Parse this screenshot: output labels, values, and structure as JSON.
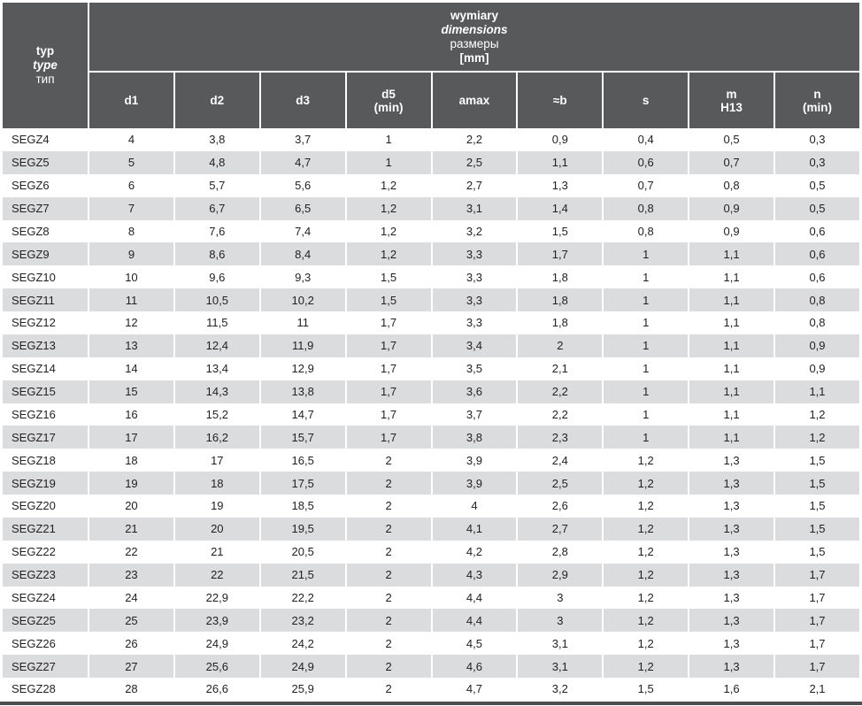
{
  "table": {
    "corner_header": [
      "typ",
      "type",
      "тип"
    ],
    "group_header": [
      "wymiary",
      "dimensions",
      "размеры",
      "[mm]"
    ],
    "columns": [
      {
        "main": "d1",
        "sub": ""
      },
      {
        "main": "d2",
        "sub": ""
      },
      {
        "main": "d3",
        "sub": ""
      },
      {
        "main": "d5",
        "sub": "(min)"
      },
      {
        "main": "amax",
        "sub": ""
      },
      {
        "main": "≈b",
        "sub": ""
      },
      {
        "main": "s",
        "sub": ""
      },
      {
        "main": "m",
        "sub": "H13"
      },
      {
        "main": "n",
        "sub": "(min)"
      }
    ],
    "rows": [
      {
        "type": "SEGZ4",
        "values": [
          "4",
          "3,8",
          "3,7",
          "1",
          "2,2",
          "0,9",
          "0,4",
          "0,5",
          "0,3"
        ]
      },
      {
        "type": "SEGZ5",
        "values": [
          "5",
          "4,8",
          "4,7",
          "1",
          "2,5",
          "1,1",
          "0,6",
          "0,7",
          "0,3"
        ]
      },
      {
        "type": "SEGZ6",
        "values": [
          "6",
          "5,7",
          "5,6",
          "1,2",
          "2,7",
          "1,3",
          "0,7",
          "0,8",
          "0,5"
        ]
      },
      {
        "type": "SEGZ7",
        "values": [
          "7",
          "6,7",
          "6,5",
          "1,2",
          "3,1",
          "1,4",
          "0,8",
          "0,9",
          "0,5"
        ]
      },
      {
        "type": "SEGZ8",
        "values": [
          "8",
          "7,6",
          "7,4",
          "1,2",
          "3,2",
          "1,5",
          "0,8",
          "0,9",
          "0,6"
        ]
      },
      {
        "type": "SEGZ9",
        "values": [
          "9",
          "8,6",
          "8,4",
          "1,2",
          "3,3",
          "1,7",
          "1",
          "1,1",
          "0,6"
        ]
      },
      {
        "type": "SEGZ10",
        "values": [
          "10",
          "9,6",
          "9,3",
          "1,5",
          "3,3",
          "1,8",
          "1",
          "1,1",
          "0,6"
        ]
      },
      {
        "type": "SEGZ11",
        "values": [
          "11",
          "10,5",
          "10,2",
          "1,5",
          "3,3",
          "1,8",
          "1",
          "1,1",
          "0,8"
        ]
      },
      {
        "type": "SEGZ12",
        "values": [
          "12",
          "11,5",
          "11",
          "1,7",
          "3,3",
          "1,8",
          "1",
          "1,1",
          "0,8"
        ]
      },
      {
        "type": "SEGZ13",
        "values": [
          "13",
          "12,4",
          "11,9",
          "1,7",
          "3,4",
          "2",
          "1",
          "1,1",
          "0,9"
        ]
      },
      {
        "type": "SEGZ14",
        "values": [
          "14",
          "13,4",
          "12,9",
          "1,7",
          "3,5",
          "2,1",
          "1",
          "1,1",
          "0,9"
        ]
      },
      {
        "type": "SEGZ15",
        "values": [
          "15",
          "14,3",
          "13,8",
          "1,7",
          "3,6",
          "2,2",
          "1",
          "1,1",
          "1,1"
        ]
      },
      {
        "type": "SEGZ16",
        "values": [
          "16",
          "15,2",
          "14,7",
          "1,7",
          "3,7",
          "2,2",
          "1",
          "1,1",
          "1,2"
        ]
      },
      {
        "type": "SEGZ17",
        "values": [
          "17",
          "16,2",
          "15,7",
          "1,7",
          "3,8",
          "2,3",
          "1",
          "1,1",
          "1,2"
        ]
      },
      {
        "type": "SEGZ18",
        "values": [
          "18",
          "17",
          "16,5",
          "2",
          "3,9",
          "2,4",
          "1,2",
          "1,3",
          "1,5"
        ]
      },
      {
        "type": "SEGZ19",
        "values": [
          "19",
          "18",
          "17,5",
          "2",
          "3,9",
          "2,5",
          "1,2",
          "1,3",
          "1,5"
        ]
      },
      {
        "type": "SEGZ20",
        "values": [
          "20",
          "19",
          "18,5",
          "2",
          "4",
          "2,6",
          "1,2",
          "1,3",
          "1,5"
        ]
      },
      {
        "type": "SEGZ21",
        "values": [
          "21",
          "20",
          "19,5",
          "2",
          "4,1",
          "2,7",
          "1,2",
          "1,3",
          "1,5"
        ]
      },
      {
        "type": "SEGZ22",
        "values": [
          "22",
          "21",
          "20,5",
          "2",
          "4,2",
          "2,8",
          "1,2",
          "1,3",
          "1,5"
        ]
      },
      {
        "type": "SEGZ23",
        "values": [
          "23",
          "22",
          "21,5",
          "2",
          "4,3",
          "2,9",
          "1,2",
          "1,3",
          "1,7"
        ]
      },
      {
        "type": "SEGZ24",
        "values": [
          "24",
          "22,9",
          "22,2",
          "2",
          "4,4",
          "3",
          "1,2",
          "1,3",
          "1,7"
        ]
      },
      {
        "type": "SEGZ25",
        "values": [
          "25",
          "23,9",
          "23,2",
          "2",
          "4,4",
          "3",
          "1,2",
          "1,3",
          "1,7"
        ]
      },
      {
        "type": "SEGZ26",
        "values": [
          "26",
          "24,9",
          "24,2",
          "2",
          "4,5",
          "3,1",
          "1,2",
          "1,3",
          "1,7"
        ]
      },
      {
        "type": "SEGZ27",
        "values": [
          "27",
          "25,6",
          "24,9",
          "2",
          "4,6",
          "3,1",
          "1,2",
          "1,3",
          "1,7"
        ]
      },
      {
        "type": "SEGZ28",
        "values": [
          "28",
          "26,6",
          "25,9",
          "2",
          "4,7",
          "3,2",
          "1,5",
          "1,6",
          "2,1"
        ]
      }
    ]
  },
  "colors": {
    "header_bg": "#58595B",
    "header_text": "#FFFFFF",
    "row_bg": "#FFFFFF",
    "row_alt_bg": "#DBDCDD",
    "body_text": "#231F20",
    "bottom_border": "#4D4E50"
  }
}
